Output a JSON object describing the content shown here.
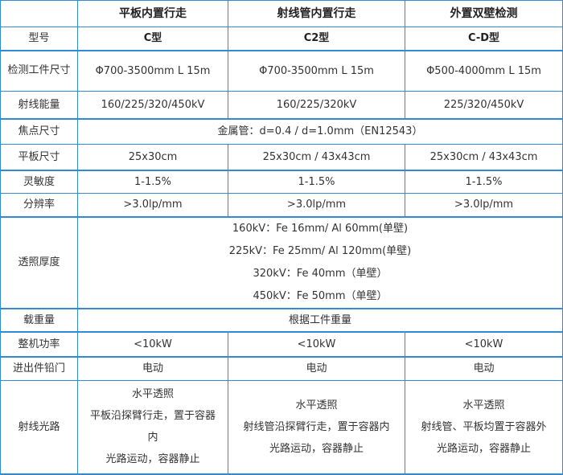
{
  "header": [
    "",
    "平板内置行走",
    "射线管内置行走",
    "外置双壁检测"
  ],
  "model": {
    "label": "型号",
    "values": [
      "C型",
      "C2型",
      "C-D型"
    ]
  },
  "workpiece": {
    "label": "检测工件尺寸",
    "values": [
      "Φ700-3500mm L 15m",
      "Φ700-3500mm L 15m",
      "Φ500-4000mm L 15m"
    ]
  },
  "energy": {
    "label": "射线能量",
    "values": [
      "160/225/320/450kV",
      "160/225/320kV",
      "225/320/450kV"
    ]
  },
  "focus": {
    "label": "焦点尺寸",
    "value": "金属管：d=0.4 / d=1.0mm（EN12543）"
  },
  "panel": {
    "label": "平板尺寸",
    "values": [
      "25x30cm",
      "25x30cm / 43x43cm",
      "25x30cm / 43x43cm"
    ]
  },
  "sensitivity": {
    "label": "灵敏度",
    "values": [
      "1-1.5%",
      "1-1.5%",
      "1-1.5%"
    ]
  },
  "resolution": {
    "label": "分辨率",
    "values": [
      ">3.0lp/mm",
      ">3.0lp/mm",
      ">3.0lp/mm"
    ]
  },
  "thickness": {
    "label": "透照厚度",
    "lines": [
      "160kV：Fe 16mm/ Al 60mm(单壁)",
      "225kV：Fe 25mm/ Al 120mm(单壁)",
      "320kV：Fe 40mm（单壁）",
      "450kV：Fe 50mm（单壁）"
    ]
  },
  "load": {
    "label": "载重量",
    "value": "根据工件重量"
  },
  "power": {
    "label": "整机功率",
    "values": [
      "<10kW",
      "<10kW",
      "<10kW"
    ]
  },
  "door": {
    "label": "进出件铅门",
    "values": [
      "电动",
      "电动",
      "电动"
    ]
  },
  "path": {
    "label": "射线光路",
    "cols": [
      [
        "水平透照",
        "平板沿探臂行走，置于容器内",
        "光路运动，容器静止"
      ],
      [
        "水平透照",
        "射线管沿探臂行走，置于容器内",
        "光路运动，容器静止"
      ],
      [
        "水平透照",
        "射线管、平板均置于容器外",
        "光路运动，容器静止"
      ]
    ]
  },
  "colors": {
    "border": "#2f8ad8",
    "text": "#333333"
  }
}
